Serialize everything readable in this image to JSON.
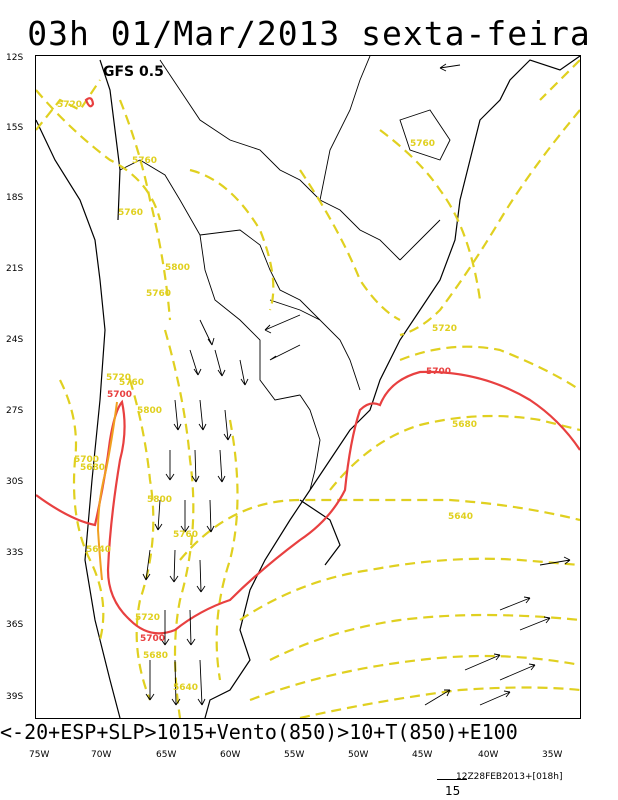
{
  "title": "03h 01/Mar/2013 sexta-feira",
  "model": "GFS 0.5",
  "bottom_title": "<-20+ESP+SLP>1015+Vento(850)>10+T(850)+E100",
  "run_info": "12Z28FEB2013+[018h]",
  "wind_scale_value": "15",
  "lat_labels": [
    "12S",
    "15S",
    "18S",
    "21S",
    "24S",
    "27S",
    "30S",
    "33S",
    "36S",
    "39S"
  ],
  "lon_labels": [
    "75W",
    "70W",
    "65W",
    "60W",
    "55W",
    "50W",
    "45W",
    "40W",
    "35W"
  ],
  "contour_labels_yellow": [
    "5720",
    "5760",
    "5760",
    "5800",
    "5760",
    "5760",
    "5720",
    "5760",
    "5800",
    "5700",
    "5800",
    "5760",
    "5640",
    "5680",
    "5720",
    "5680",
    "5640",
    "5720",
    "5680",
    "5640"
  ],
  "contour_labels_red": [
    "5720",
    "5700",
    "5700",
    "5700"
  ],
  "colors": {
    "geopotential": "#e0d020",
    "line_5700": "#e84040",
    "map": "#000000"
  }
}
